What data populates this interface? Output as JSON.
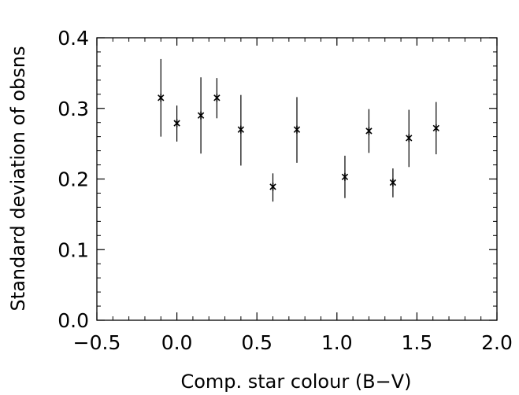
{
  "chart_data": {
    "type": "scatter",
    "title": "",
    "xlabel": "Comp. star colour (B−V)",
    "ylabel": "Standard deviation of obsns",
    "xlim": [
      -0.5,
      2.0
    ],
    "ylim": [
      0.0,
      0.4
    ],
    "xticks": [
      -0.5,
      0.0,
      0.5,
      1.0,
      1.5,
      2.0
    ],
    "xtick_labels": [
      "−0.5",
      "0.0",
      "0.5",
      "1.0",
      "1.5",
      "2.0"
    ],
    "yticks": [
      0.0,
      0.1,
      0.2,
      0.3,
      0.4
    ],
    "ytick_labels": [
      "0.0",
      "0.1",
      "0.2",
      "0.3",
      "0.4"
    ],
    "x_minor_step": 0.1,
    "y_minor_step": 0.02,
    "grid": false,
    "marker": "asterisk",
    "points": [
      {
        "x": -0.1,
        "y": 0.315,
        "err_low": 0.26,
        "err_high": 0.37
      },
      {
        "x": 0.0,
        "y": 0.279,
        "err_low": 0.253,
        "err_high": 0.304
      },
      {
        "x": 0.15,
        "y": 0.29,
        "err_low": 0.236,
        "err_high": 0.344
      },
      {
        "x": 0.25,
        "y": 0.315,
        "err_low": 0.286,
        "err_high": 0.343
      },
      {
        "x": 0.4,
        "y": 0.27,
        "err_low": 0.219,
        "err_high": 0.319
      },
      {
        "x": 0.6,
        "y": 0.189,
        "err_low": 0.168,
        "err_high": 0.208
      },
      {
        "x": 0.75,
        "y": 0.27,
        "err_low": 0.223,
        "err_high": 0.316
      },
      {
        "x": 1.05,
        "y": 0.203,
        "err_low": 0.173,
        "err_high": 0.233
      },
      {
        "x": 1.2,
        "y": 0.268,
        "err_low": 0.237,
        "err_high": 0.299
      },
      {
        "x": 1.35,
        "y": 0.195,
        "err_low": 0.174,
        "err_high": 0.215
      },
      {
        "x": 1.45,
        "y": 0.258,
        "err_low": 0.217,
        "err_high": 0.298
      },
      {
        "x": 1.62,
        "y": 0.272,
        "err_low": 0.235,
        "err_high": 0.309
      }
    ]
  }
}
